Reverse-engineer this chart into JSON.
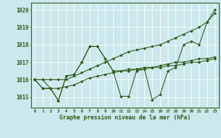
{
  "background_color": "#cce8ec",
  "grid_color": "#b0d4d8",
  "line_color": "#2d5a1b",
  "xlabel": "Graphe pression niveau de la mer (hPa)",
  "ylim": [
    1014.4,
    1020.4
  ],
  "xlim": [
    -0.5,
    23.5
  ],
  "yticks": [
    1015,
    1016,
    1017,
    1018,
    1019,
    1020
  ],
  "xticks": [
    0,
    1,
    2,
    3,
    4,
    5,
    6,
    7,
    8,
    9,
    10,
    11,
    12,
    13,
    14,
    15,
    16,
    17,
    18,
    19,
    20,
    21,
    22,
    23
  ],
  "series": [
    [
      1016.0,
      1016.0,
      1015.5,
      1014.8,
      1016.2,
      1016.3,
      1017.0,
      1017.9,
      1017.9,
      1017.2,
      1016.5,
      1016.5,
      1016.5,
      1016.6,
      1016.6,
      1016.7,
      1016.8,
      1016.9,
      1017.0,
      1017.0,
      1017.1,
      1017.2,
      1017.2,
      1017.3
    ],
    [
      1016.0,
      1016.0,
      1016.0,
      1016.0,
      1016.0,
      1016.2,
      1016.4,
      1016.6,
      1016.8,
      1017.0,
      1017.2,
      1017.4,
      1017.6,
      1017.7,
      1017.8,
      1017.9,
      1018.0,
      1018.2,
      1018.4,
      1018.6,
      1018.8,
      1019.0,
      1019.3,
      1019.8
    ],
    [
      1016.0,
      1015.5,
      1015.5,
      1014.8,
      1016.2,
      1016.3,
      1017.0,
      1017.9,
      1017.9,
      1017.2,
      1016.5,
      1015.05,
      1015.05,
      1016.5,
      1016.6,
      1014.85,
      1015.15,
      1016.5,
      1016.7,
      1018.0,
      1018.2,
      1018.0,
      1019.3,
      1020.0
    ],
    [
      1016.0,
      1015.5,
      1015.5,
      1015.5,
      1015.6,
      1015.7,
      1015.9,
      1016.1,
      1016.2,
      1016.3,
      1016.4,
      1016.5,
      1016.6,
      1016.6,
      1016.7,
      1016.7,
      1016.7,
      1016.8,
      1016.8,
      1016.9,
      1017.0,
      1017.0,
      1017.1,
      1017.2
    ]
  ],
  "marker": "D",
  "markersize": 1.8,
  "linewidth": 0.8
}
